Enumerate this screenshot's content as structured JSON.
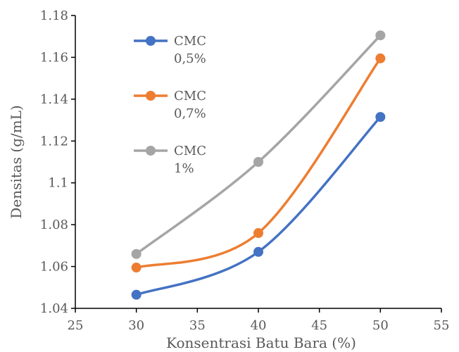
{
  "chart_data": {
    "type": "line",
    "title": "",
    "xlabel": "Konsentrasi Batu Bara (%)",
    "ylabel": "Densitas (g/mL)",
    "xlim": [
      25,
      55
    ],
    "ylim": [
      1.04,
      1.18
    ],
    "x_ticks": [
      "25",
      "30",
      "35",
      "40",
      "45",
      "50",
      "55"
    ],
    "y_ticks": [
      "1.04",
      "1.06",
      "1.08",
      "1.1",
      "1.12",
      "1.14",
      "1.16",
      "1.18"
    ],
    "grid": false,
    "smooth": true,
    "legend_position": "top-left",
    "x": [
      30,
      40,
      50
    ],
    "series": [
      {
        "name_lines": [
          "CMC",
          "0,5%"
        ],
        "color": "#4472c4",
        "values": [
          1.0465,
          1.067,
          1.1315
        ]
      },
      {
        "name_lines": [
          "CMC",
          "0,7%"
        ],
        "color": "#ed7d31",
        "values": [
          1.0595,
          1.076,
          1.1595
        ]
      },
      {
        "name_lines": [
          "CMC",
          "1%"
        ],
        "color": "#a5a5a5",
        "values": [
          1.066,
          1.11,
          1.1705
        ]
      }
    ]
  }
}
